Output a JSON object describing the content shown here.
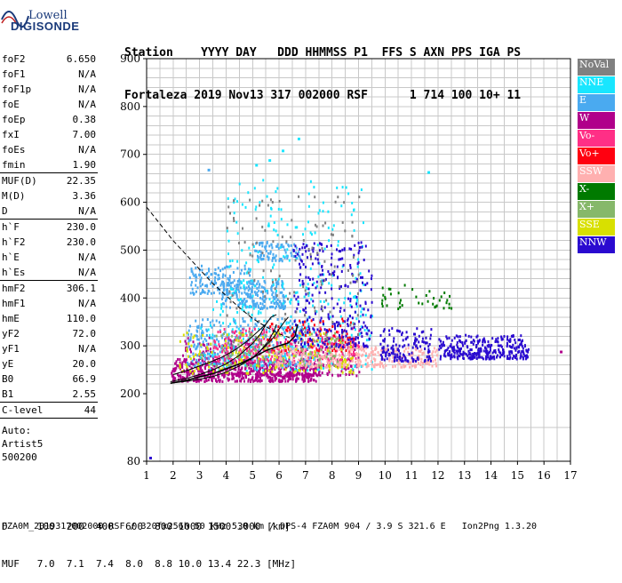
{
  "logo": {
    "line1": "Lowell",
    "line2": "DIGISONDE"
  },
  "header": {
    "line1": "Station    YYYY DAY   DDD HHMMSS P1  FFS S AXN PPS IGA PS",
    "line2": "Fortaleza 2019 Nov13 317 002000 RSF      1 714 100 10+ 11"
  },
  "params": [
    {
      "label": "foF2",
      "value": "6.650",
      "sep": false
    },
    {
      "label": "foF1",
      "value": "N/A",
      "sep": false
    },
    {
      "label": "foF1p",
      "value": "N/A",
      "sep": false
    },
    {
      "label": "foE",
      "value": "N/A",
      "sep": false
    },
    {
      "label": "foEp",
      "value": "0.38",
      "sep": false
    },
    {
      "label": "fxI",
      "value": "7.00",
      "sep": false
    },
    {
      "label": "foEs",
      "value": "N/A",
      "sep": false
    },
    {
      "label": "fmin",
      "value": "1.90",
      "sep": false
    },
    {
      "label": "MUF(D)",
      "value": "22.35",
      "sep": true
    },
    {
      "label": "M(D)",
      "value": "3.36",
      "sep": false
    },
    {
      "label": "D",
      "value": "N/A",
      "sep": false
    },
    {
      "label": "h`F",
      "value": "230.0",
      "sep": true
    },
    {
      "label": "h`F2",
      "value": "230.0",
      "sep": false
    },
    {
      "label": "h`E",
      "value": "N/A",
      "sep": false
    },
    {
      "label": "h`Es",
      "value": "N/A",
      "sep": false
    },
    {
      "label": "hmF2",
      "value": "306.1",
      "sep": true
    },
    {
      "label": "hmF1",
      "value": "N/A",
      "sep": false
    },
    {
      "label": "hmE",
      "value": "110.0",
      "sep": false
    },
    {
      "label": "yF2",
      "value": "72.0",
      "sep": false
    },
    {
      "label": "yF1",
      "value": "N/A",
      "sep": false
    },
    {
      "label": "yE",
      "value": "20.0",
      "sep": false
    },
    {
      "label": "B0",
      "value": "66.9",
      "sep": false
    },
    {
      "label": "B1",
      "value": "2.55",
      "sep": false
    },
    {
      "label": "C-level",
      "value": "44",
      "sep": true
    }
  ],
  "auto": {
    "line1": "Auto:",
    "line2": "Artist5",
    "line3": "500200"
  },
  "legend": [
    {
      "label": "NoVal",
      "color": "#808080"
    },
    {
      "label": "NNE",
      "color": "#19e6ff"
    },
    {
      "label": "E",
      "color": "#4aaaf0"
    },
    {
      "label": "W",
      "color": "#b0008a"
    },
    {
      "label": "Vo-",
      "color": "#ff2f86"
    },
    {
      "label": "Vo+",
      "color": "#ff0010"
    },
    {
      "label": "SSW",
      "color": "#ffb0b0"
    },
    {
      "label": "X-",
      "color": "#007a00"
    },
    {
      "label": "X+",
      "color": "#86b86a"
    },
    {
      "label": "SSE",
      "color": "#d8e000"
    },
    {
      "label": "NNW",
      "color": "#2a0ad0"
    }
  ],
  "bottom": {
    "d_line": "D     100  200  400  600  800 1000 1500 3000 [km]",
    "muf_line": "MUF   7.0  7.1  7.4  8.0  8.8 10.0 13.4 22.3 [MHz]"
  },
  "footer": "FZA0M_2019317002000.RSF / 320fx256h 50 kHz 5.0 km / DPS-4 FZA0M 904 / 3.9 S 321.6 E   Ion2Png 1.3.20",
  "chart_data": {
    "type": "scatter",
    "title": "",
    "xlabel": "",
    "ylabel": "",
    "xlim": [
      1,
      17
    ],
    "ylim": [
      80,
      900
    ],
    "y_break": 200,
    "x_ticks": [
      "1",
      "2",
      "3",
      "4",
      "5",
      "6",
      "7",
      "8",
      "9",
      "10",
      "11",
      "12",
      "13",
      "14",
      "15",
      "16",
      "17"
    ],
    "y_ticks": [
      "80",
      "200",
      "300",
      "400",
      "500",
      "600",
      "700",
      "800",
      "900"
    ],
    "grid": true,
    "legend_position": "right",
    "scaled_profile": [
      [
        1.9,
        222
      ],
      [
        2.5,
        228
      ],
      [
        3.0,
        235
      ],
      [
        3.5,
        242
      ],
      [
        4.0,
        252
      ],
      [
        4.5,
        262
      ],
      [
        5.0,
        275
      ],
      [
        5.5,
        290
      ],
      [
        6.0,
        300
      ],
      [
        6.35,
        306
      ],
      [
        6.6,
        320
      ],
      [
        6.7,
        345
      ]
    ],
    "dashed_curve": [
      [
        1.0,
        590
      ],
      [
        1.5,
        555
      ],
      [
        2.0,
        520
      ],
      [
        2.5,
        490
      ],
      [
        3.0,
        460
      ],
      [
        3.5,
        430
      ],
      [
        4.0,
        405
      ],
      [
        4.5,
        380
      ],
      [
        5.0,
        357
      ],
      [
        5.5,
        340
      ],
      [
        6.0,
        325
      ],
      [
        6.5,
        315
      ]
    ],
    "trace_curves": [
      [
        [
          1.9,
          222
        ],
        [
          2.5,
          226
        ],
        [
          3.0,
          230
        ],
        [
          3.5,
          236
        ],
        [
          4.0,
          245
        ],
        [
          4.5,
          258
        ],
        [
          5.0,
          275
        ],
        [
          5.3,
          290
        ],
        [
          5.6,
          310
        ],
        [
          5.8,
          330
        ],
        [
          5.9,
          345
        ]
      ],
      [
        [
          1.9,
          225
        ],
        [
          2.5,
          232
        ],
        [
          3.0,
          240
        ],
        [
          3.5,
          250
        ],
        [
          4.0,
          262
        ],
        [
          4.5,
          280
        ],
        [
          5.0,
          305
        ],
        [
          5.3,
          325
        ],
        [
          5.5,
          345
        ],
        [
          5.7,
          360
        ],
        [
          5.9,
          365
        ]
      ],
      [
        [
          4.9,
          270
        ],
        [
          5.2,
          285
        ],
        [
          5.5,
          300
        ],
        [
          5.8,
          318
        ],
        [
          6.0,
          335
        ],
        [
          6.2,
          350
        ],
        [
          6.35,
          360
        ]
      ],
      [
        [
          2.0,
          240
        ],
        [
          2.6,
          250
        ],
        [
          3.2,
          262
        ],
        [
          3.8,
          275
        ],
        [
          4.3,
          290
        ],
        [
          4.8,
          310
        ],
        [
          5.2,
          330
        ],
        [
          5.5,
          345
        ]
      ]
    ],
    "echo_clusters": [
      {
        "color": "#b0008a",
        "x": [
          1.9,
          7.5
        ],
        "y": [
          228,
          275
        ],
        "n": 520
      },
      {
        "color": "#b0008a",
        "x": [
          2.2,
          9.0
        ],
        "y": [
          240,
          320
        ],
        "n": 360
      },
      {
        "color": "#4aaaf0",
        "x": [
          2.5,
          7.2
        ],
        "y": [
          260,
          360
        ],
        "n": 320
      },
      {
        "color": "#4aaaf0",
        "x": [
          3.8,
          6.2
        ],
        "y": [
          380,
          440
        ],
        "n": 200
      },
      {
        "color": "#4aaaf0",
        "x": [
          2.6,
          5.0
        ],
        "y": [
          410,
          470
        ],
        "n": 140
      },
      {
        "color": "#4aaaf0",
        "x": [
          5.0,
          6.8
        ],
        "y": [
          480,
          520
        ],
        "n": 80
      },
      {
        "color": "#19e6ff",
        "x": [
          3.0,
          9.5
        ],
        "y": [
          250,
          400
        ],
        "n": 220
      },
      {
        "color": "#19e6ff",
        "x": [
          4.0,
          9.2
        ],
        "y": [
          400,
          650
        ],
        "n": 160
      },
      {
        "color": "#ff2f86",
        "x": [
          3.5,
          9.0
        ],
        "y": [
          270,
          340
        ],
        "n": 260
      },
      {
        "color": "#ff0010",
        "x": [
          5.5,
          8.8
        ],
        "y": [
          290,
          360
        ],
        "n": 90
      },
      {
        "color": "#ffb0b0",
        "x": [
          5.8,
          12.0
        ],
        "y": [
          258,
          300
        ],
        "n": 320
      },
      {
        "color": "#d8e000",
        "x": [
          2.2,
          8.8
        ],
        "y": [
          245,
          330
        ],
        "n": 160
      },
      {
        "color": "#86b86a",
        "x": [
          3.0,
          8.5
        ],
        "y": [
          260,
          330
        ],
        "n": 100
      },
      {
        "color": "#007a00",
        "x": [
          9.8,
          12.5
        ],
        "y": [
          380,
          430
        ],
        "n": 40
      },
      {
        "color": "#2a0ad0",
        "x": [
          6.5,
          9.5
        ],
        "y": [
          300,
          520
        ],
        "n": 280
      },
      {
        "color": "#2a0ad0",
        "x": [
          9.8,
          11.8
        ],
        "y": [
          270,
          340
        ],
        "n": 140
      },
      {
        "color": "#2a0ad0",
        "x": [
          12.0,
          15.4
        ],
        "y": [
          275,
          325
        ],
        "n": 320
      },
      {
        "color": "#808080",
        "x": [
          4.0,
          9.0
        ],
        "y": [
          300,
          620
        ],
        "n": 120
      }
    ],
    "isolated_points": [
      {
        "color": "#19e6ff",
        "x": 6.7,
        "y": 735
      },
      {
        "color": "#19e6ff",
        "x": 6.1,
        "y": 710
      },
      {
        "color": "#19e6ff",
        "x": 5.6,
        "y": 690
      },
      {
        "color": "#19e6ff",
        "x": 5.1,
        "y": 680
      },
      {
        "color": "#4aaaf0",
        "x": 3.3,
        "y": 670
      },
      {
        "color": "#19e6ff",
        "x": 11.6,
        "y": 665
      },
      {
        "color": "#2a0ad0",
        "x": 1.1,
        "y": 88
      },
      {
        "color": "#b0008a",
        "x": 16.6,
        "y": 290
      }
    ]
  }
}
